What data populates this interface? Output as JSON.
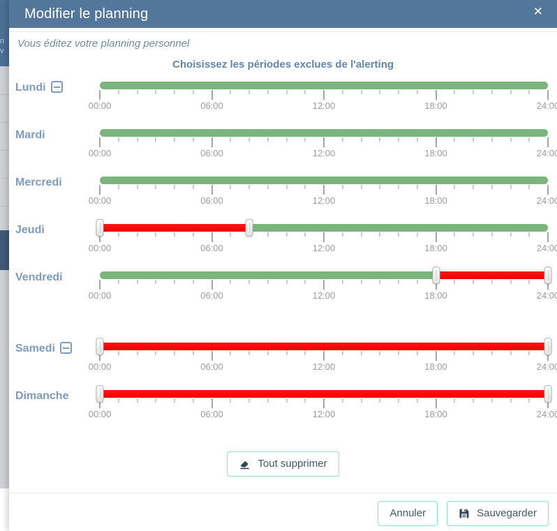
{
  "modal": {
    "title": "Modifier le planning",
    "close_glyph": "✕",
    "subtitle": "Vous éditez votre planning personnel",
    "heading": "Choisissez les périodes exclues de l'alerting"
  },
  "axis": {
    "hours_major": [
      0,
      6,
      12,
      18,
      24
    ],
    "tick_labels": [
      "00:00",
      "06:00",
      "12:00",
      "18:00",
      "24:00"
    ],
    "hours_total": 24
  },
  "days": [
    {
      "label": "Lundi",
      "removable": true,
      "segments": [
        {
          "start": 0,
          "end": 24,
          "type": "included"
        }
      ],
      "handles": []
    },
    {
      "label": "Mardi",
      "removable": false,
      "segments": [
        {
          "start": 0,
          "end": 24,
          "type": "included"
        }
      ],
      "handles": []
    },
    {
      "label": "Mercredi",
      "removable": false,
      "segments": [
        {
          "start": 0,
          "end": 24,
          "type": "included"
        }
      ],
      "handles": []
    },
    {
      "label": "Jeudi",
      "removable": false,
      "segments": [
        {
          "start": 0,
          "end": 8,
          "type": "excluded"
        },
        {
          "start": 8,
          "end": 24,
          "type": "included"
        }
      ],
      "handles": [
        0,
        8
      ]
    },
    {
      "label": "Vendredi",
      "removable": false,
      "segments": [
        {
          "start": 0,
          "end": 18,
          "type": "included"
        },
        {
          "start": 18,
          "end": 24,
          "type": "excluded"
        }
      ],
      "handles": [
        18,
        24
      ],
      "extra_gap": true
    },
    {
      "label": "Samedi",
      "removable": true,
      "segments": [
        {
          "start": 0,
          "end": 24,
          "type": "excluded"
        }
      ],
      "handles": [
        0,
        24
      ]
    },
    {
      "label": "Dimanche",
      "removable": false,
      "segments": [
        {
          "start": 0,
          "end": 24,
          "type": "excluded"
        }
      ],
      "handles": [
        0,
        24
      ]
    }
  ],
  "buttons": {
    "clear_all": "Tout supprimer",
    "cancel": "Annuler",
    "save": "Sauvegarder"
  },
  "colors": {
    "header_bg": "#53779c",
    "included_green": "#7cb47d",
    "excluded_red": "#fa0606",
    "day_label_blue": "#7e9cbd",
    "heading_blue": "#5d87ad",
    "button_border_mint": "#86e3c8",
    "button_text": "#42586d"
  },
  "background_page": {
    "fragments": [
      "n",
      "v"
    ]
  }
}
